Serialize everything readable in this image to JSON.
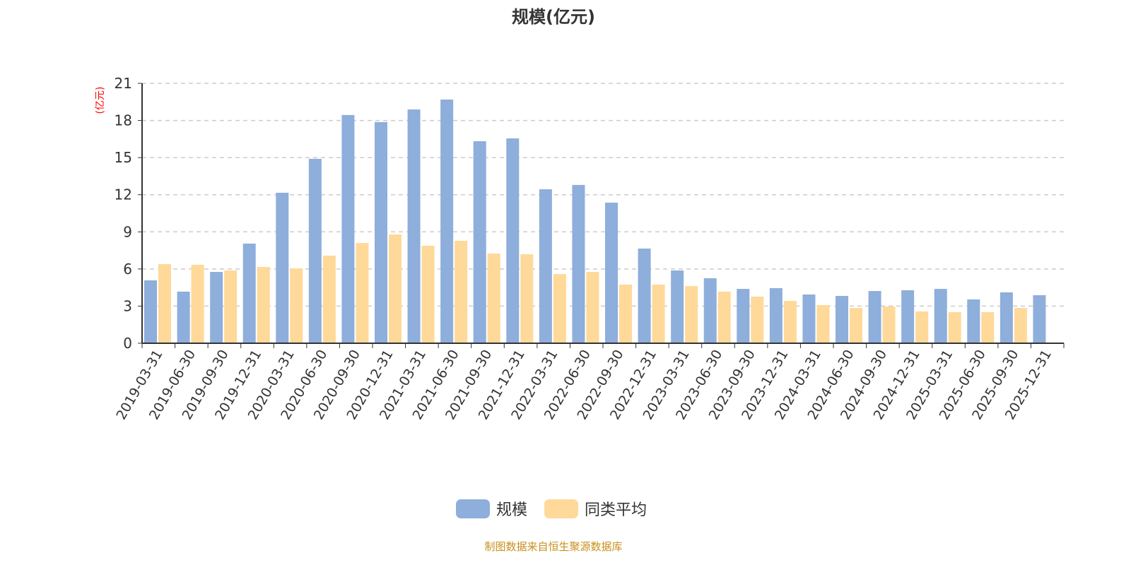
{
  "chart_data": {
    "type": "bar",
    "title": "规模(亿元)",
    "ylabel": "(亿元)",
    "ylim": [
      0,
      21
    ],
    "yticks": [
      0,
      3,
      6,
      9,
      12,
      15,
      18,
      21
    ],
    "grid": true,
    "legend_position": "bottom-center",
    "categories": [
      "2019-03-31",
      "2019-06-30",
      "2019-09-30",
      "2019-12-31",
      "2020-03-31",
      "2020-06-30",
      "2020-09-30",
      "2020-12-31",
      "2021-03-31",
      "2021-06-30",
      "2021-09-30",
      "2021-12-31",
      "2022-03-31",
      "2022-06-30",
      "2022-09-30",
      "2022-12-31",
      "2023-03-31",
      "2023-06-30",
      "2023-09-30",
      "2023-12-31",
      "2024-03-31",
      "2024-06-30",
      "2024-09-30",
      "2024-12-31",
      "2025-03-31",
      "2025-06-30",
      "2025-09-30",
      "2025-12-31"
    ],
    "series": [
      {
        "name": "规模",
        "color": "#8eaedb",
        "values": [
          5.08,
          4.17,
          5.76,
          8.05,
          12.16,
          14.9,
          18.44,
          17.87,
          18.89,
          19.69,
          16.32,
          16.55,
          12.44,
          12.79,
          11.36,
          7.65,
          5.88,
          5.25,
          4.39,
          4.45,
          3.94,
          3.82,
          4.22,
          4.28,
          4.39,
          3.54,
          4.11,
          3.88
        ]
      },
      {
        "name": "同类平均",
        "color": "#ffd999",
        "values": [
          6.39,
          6.34,
          5.88,
          6.16,
          6.05,
          7.08,
          8.1,
          8.79,
          7.88,
          8.28,
          7.25,
          7.19,
          5.59,
          5.76,
          4.74,
          4.74,
          4.62,
          4.17,
          3.77,
          3.42,
          3.08,
          2.85,
          2.97,
          2.57,
          2.51,
          2.51,
          2.85,
          null
        ]
      }
    ]
  },
  "footer": "制图数据来自恒生聚源数据库"
}
